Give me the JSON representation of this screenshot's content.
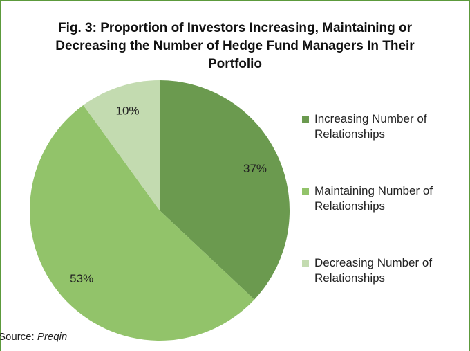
{
  "chart_data": {
    "type": "pie",
    "title": "Fig. 3: Proportion of Investors Increasing, Maintaining or Decreasing the Number of Hedge Fund Managers In Their Portfolio",
    "categories": [
      "Increasing Number of Relationships",
      "Maintaining Number of Relationships",
      "Decreasing Number of Relationships"
    ],
    "values": [
      37,
      53,
      10
    ],
    "value_labels": [
      "37%",
      "53%",
      "10%"
    ],
    "colors": [
      "#6b9a4f",
      "#92c36a",
      "#c3dbb0"
    ],
    "legend": "right",
    "source_label": "Source:",
    "source": "Preqin"
  }
}
